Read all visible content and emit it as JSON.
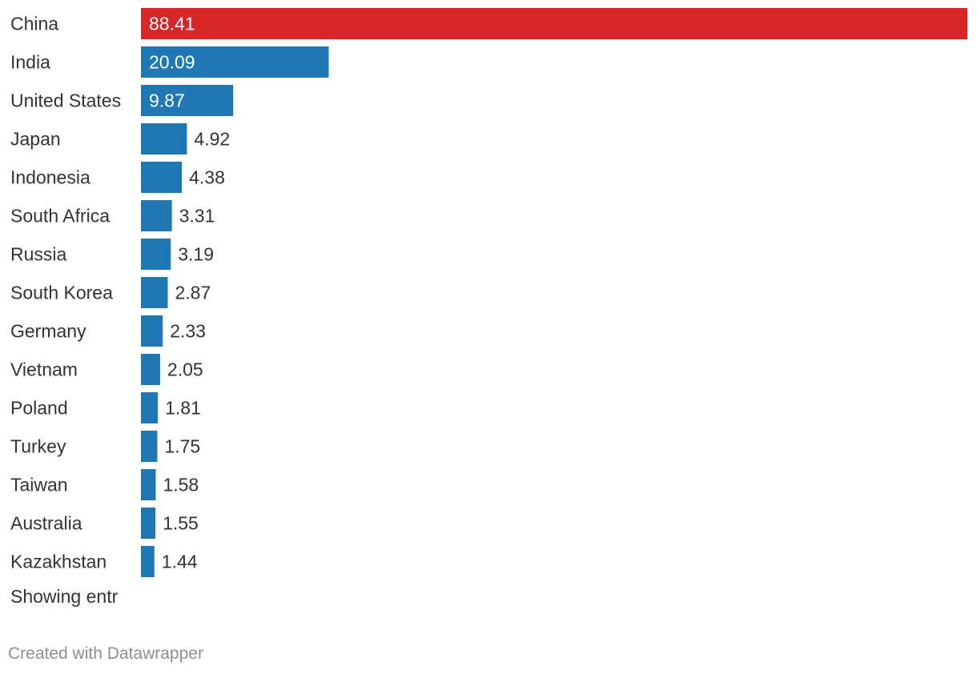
{
  "chart_data": {
    "type": "bar",
    "orientation": "horizontal",
    "categories": [
      "China",
      "India",
      "United States",
      "Japan",
      "Indonesia",
      "South Africa",
      "Russia",
      "South Korea",
      "Germany",
      "Vietnam",
      "Poland",
      "Turkey",
      "Taiwan",
      "Australia",
      "Kazakhstan"
    ],
    "values": [
      88.41,
      20.09,
      9.87,
      4.92,
      4.38,
      3.31,
      3.19,
      2.87,
      2.33,
      2.05,
      1.81,
      1.75,
      1.58,
      1.55,
      1.44
    ],
    "value_labels": [
      "88.41",
      "20.09",
      "9.87",
      "4.92",
      "4.38",
      "3.31",
      "3.19",
      "2.87",
      "2.33",
      "2.05",
      "1.81",
      "1.75",
      "1.58",
      "1.55",
      "1.44"
    ],
    "highlight": [
      "China"
    ],
    "colors": {
      "default": "#1f77b4",
      "highlight": "#d62728",
      "label_inside": "#ffffff",
      "label_outside": "#333333"
    },
    "xlim": [
      0,
      88.41
    ],
    "grid": false,
    "legend": "none"
  },
  "footer": {
    "note": "Showing entr",
    "credit": "Created with Datawrapper"
  }
}
